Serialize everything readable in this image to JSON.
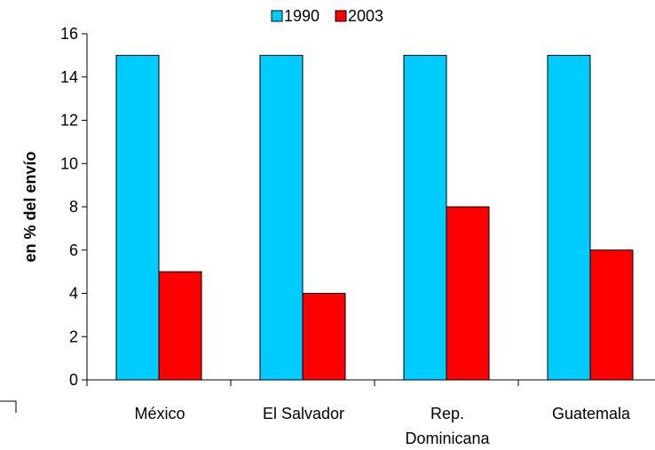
{
  "chart_data": {
    "type": "bar",
    "categories": [
      "México",
      "El Salvador",
      "Rep.\nDominicana",
      "Guatemala"
    ],
    "series": [
      {
        "name": "1990",
        "values": [
          15,
          15,
          15,
          15
        ],
        "color": "#00ccff"
      },
      {
        "name": "2003",
        "values": [
          5,
          4,
          8,
          6
        ],
        "color": "#ff0000"
      }
    ],
    "ylabel": "en % del envío",
    "ylim": [
      0,
      16
    ],
    "yticks": [
      0,
      2,
      4,
      6,
      8,
      10,
      12,
      14,
      16
    ],
    "grid": false,
    "legend": "top-center"
  }
}
